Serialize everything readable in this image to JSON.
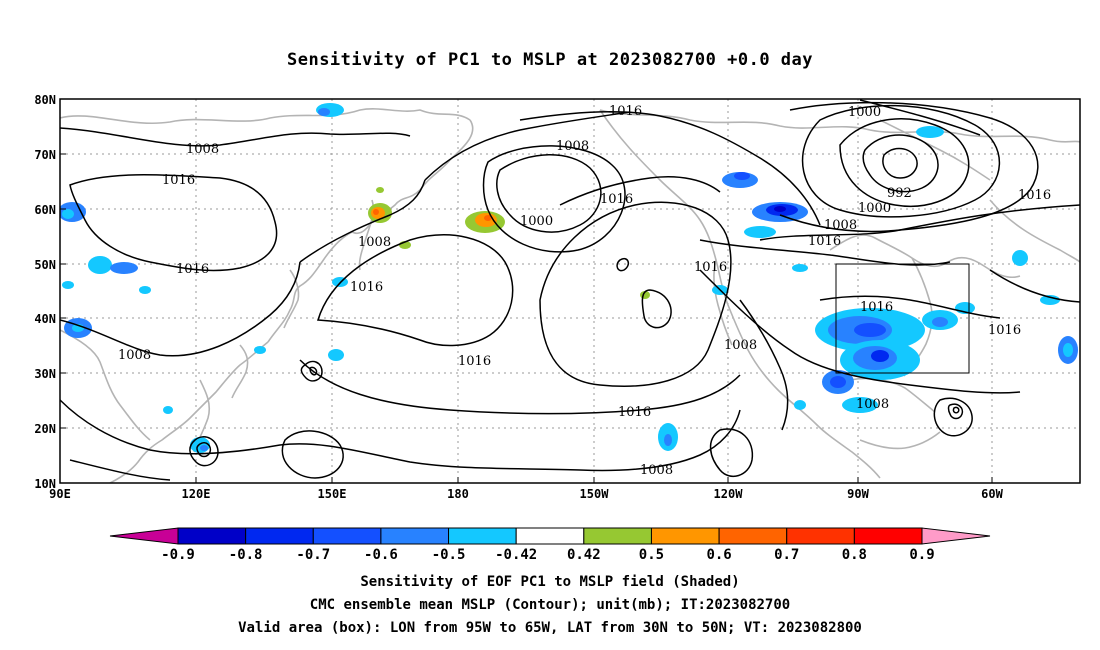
{
  "title": "Sensitivity of PC1 to MSLP at 2023082700 +0.0 day",
  "lat_ticks": [
    "80N",
    "70N",
    "60N",
    "50N",
    "40N",
    "30N",
    "20N",
    "10N"
  ],
  "lon_ticks": [
    "90E",
    "120E",
    "150E",
    "180",
    "150W",
    "120W",
    "90W",
    "60W"
  ],
  "contour_labels": {
    "c1016a": "1016",
    "c1008a": "1008",
    "c1016b": "1016",
    "c1008b": "1008",
    "c1000a": "1000",
    "c1016c": "1016",
    "c1008c": "1008",
    "c1016d": "1016",
    "c1016e": "1016",
    "c1016f": "1016",
    "c1016g": "1016",
    "c1000b": "1000",
    "c992": "992",
    "c1000c": "1000",
    "c1008d": "1008",
    "c1016h": "1016",
    "c1016i": "1016",
    "c1016j": "1016",
    "c1008e": "1008",
    "c1008f": "1008",
    "c1008g": "1008",
    "c1016k": "1016",
    "c1016l": "1016",
    "c1008h": "1008"
  },
  "colorbar": {
    "labels": [
      "-0.9",
      "-0.8",
      "-0.7",
      "-0.6",
      "-0.5",
      "-0.42",
      "0.42",
      "0.5",
      "0.6",
      "0.7",
      "0.8",
      "0.9"
    ],
    "colors": [
      "#0000c8",
      "#0028f0",
      "#1450ff",
      "#2882ff",
      "#14c8ff",
      "#ffffff",
      "#96c832",
      "#ff9600",
      "#ff6400",
      "#ff3200",
      "#ff0000"
    ],
    "low_extend_color": "#c80096",
    "high_extend_color": "#ff9bc8"
  },
  "captions": {
    "line1": "Sensitivity of EOF PC1 to MSLP field (Shaded)",
    "line2": "CMC ensemble mean MSLP (Contour); unit(mb); IT:2023082700",
    "line3": "Valid area (box): LON from 95W to 65W, LAT from 30N to 50N; VT: 2023082800"
  },
  "valid_box": {
    "lon_min": -95,
    "lon_max": -65,
    "lat_min": 30,
    "lat_max": 50
  }
}
